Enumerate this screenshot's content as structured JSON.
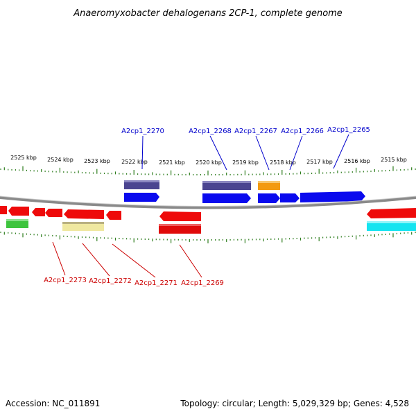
{
  "title": "Anaeromyxobacter dehalogenans 2CP-1, complete genome",
  "footer": {
    "accession": "Accession: NC_011891",
    "info": "Topology: circular; Length: 5,029,329 bp; Genes: 4,528"
  },
  "colors": {
    "backbone": "#808080",
    "tick": "#2e7d1e",
    "forward_gene": "#0a0aee",
    "reverse_gene": "#ee0a0a",
    "forward_label": "#0000cc",
    "reverse_label": "#cc0000",
    "cog_purple": "#4a4490",
    "cog_orange": "#f39a10",
    "cog_red": "#e00a0a",
    "cog_green": "#3ec43e",
    "cog_khaki": "#efe8a0",
    "cog_cyan": "#14e4f0"
  },
  "scale_labels": [
    "2525 kbp",
    "2524 kbp",
    "2523 kbp",
    "2522 kbp",
    "2521 kbp",
    "2520 kbp",
    "2519 kbp",
    "2518 kbp",
    "2517 kbp",
    "2516 kbp",
    "2515 kbp"
  ],
  "forward_labels": [
    "A2cp1_2270",
    "A2cp1_2268",
    "A2cp1_2267",
    "A2cp1_2266",
    "A2cp1_2265"
  ],
  "reverse_labels": [
    "A2cp1_2273",
    "A2cp1_2272",
    "A2cp1_2271",
    "A2cp1_2269"
  ]
}
